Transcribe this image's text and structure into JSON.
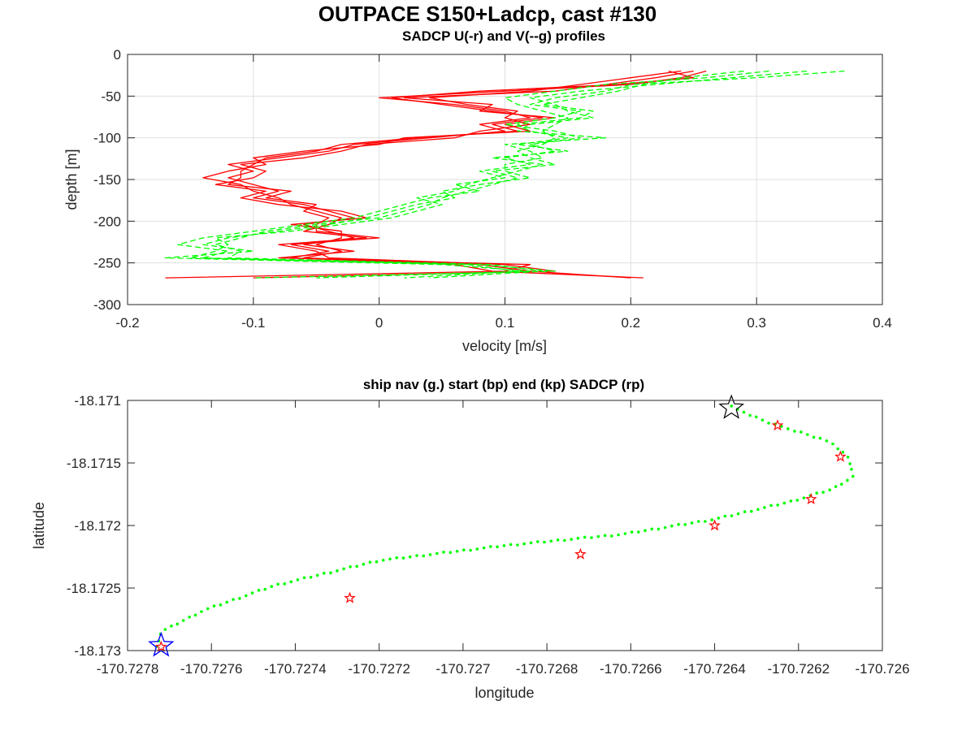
{
  "figure": {
    "suptitle": "OUTPACE S150+Ladcp, cast #130"
  },
  "chart_data": [
    {
      "type": "line",
      "title": "SADCP U(-r) and V(--g) profiles",
      "xlabel": "velocity [m/s]",
      "ylabel": "depth [m]",
      "xlim": [
        -0.2,
        0.4
      ],
      "ylim": [
        -300,
        0
      ],
      "xticks": [
        -0.2,
        -0.1,
        0,
        0.1,
        0.2,
        0.3,
        0.4
      ],
      "xtick_labels": [
        "-0.2",
        "-0.1",
        "0",
        "0.1",
        "0.2",
        "0.3",
        "0.4"
      ],
      "yticks": [
        -300,
        -250,
        -200,
        -150,
        -100,
        -50,
        0
      ],
      "ytick_labels": [
        "-300",
        "-250",
        "-200",
        "-150",
        "-100",
        "-50",
        "0"
      ],
      "grid": true,
      "depth": [
        -20,
        -28,
        -36,
        -44,
        -52,
        -60,
        -68,
        -76,
        -84,
        -92,
        -100,
        -108,
        -116,
        -124,
        -132,
        -140,
        -148,
        -156,
        -164,
        -172,
        -180,
        -188,
        -196,
        -204,
        -212,
        -220,
        -228,
        -236,
        -244,
        -252,
        -260,
        -268
      ],
      "series": [
        {
          "color": "#ff0000",
          "style": "solid",
          "profiles": [
            [
              0.26,
              0.24,
              0.2,
              0.1,
              0.0,
              0.06,
              0.1,
              0.12,
              0.08,
              0.1,
              0.04,
              -0.02,
              -0.04,
              -0.08,
              -0.12,
              -0.1,
              -0.12,
              -0.1,
              -0.08,
              -0.1,
              -0.06,
              -0.04,
              -0.02,
              -0.06,
              -0.04,
              -0.02,
              -0.06,
              -0.02,
              -0.08,
              0.12,
              0.1,
              -0.17
            ],
            [
              0.25,
              0.22,
              0.18,
              0.14,
              0.02,
              0.09,
              0.08,
              0.14,
              0.1,
              0.12,
              0.02,
              0.0,
              -0.06,
              -0.1,
              -0.09,
              -0.12,
              -0.14,
              -0.11,
              -0.1,
              -0.08,
              -0.07,
              -0.05,
              -0.03,
              -0.04,
              -0.06,
              -0.01,
              -0.08,
              -0.05,
              -0.04,
              0.1,
              0.14,
              -0.1
            ],
            [
              0.24,
              0.2,
              0.16,
              0.12,
              0.04,
              0.07,
              0.11,
              0.1,
              0.12,
              0.08,
              0.06,
              -0.01,
              -0.03,
              -0.06,
              -0.11,
              -0.09,
              -0.1,
              -0.13,
              -0.09,
              -0.11,
              -0.08,
              -0.03,
              -0.01,
              -0.07,
              -0.03,
              -0.03,
              -0.05,
              -0.03,
              -0.06,
              0.08,
              0.12,
              0.2
            ],
            [
              0.23,
              0.25,
              0.19,
              0.08,
              0.01,
              0.05,
              0.09,
              0.13,
              0.09,
              0.11,
              0.03,
              -0.03,
              -0.05,
              -0.09,
              -0.1,
              -0.11,
              -0.11,
              -0.12,
              -0.07,
              -0.09,
              -0.05,
              -0.06,
              -0.04,
              -0.05,
              -0.05,
              0.0,
              -0.07,
              -0.04,
              -0.07,
              0.06,
              0.09,
              0.21
            ]
          ]
        },
        {
          "color": "#00ff00",
          "style": "dashed",
          "profiles": [
            [
              0.37,
              0.3,
              0.2,
              0.18,
              0.14,
              0.12,
              0.16,
              0.14,
              0.1,
              0.14,
              0.16,
              0.12,
              0.14,
              0.1,
              0.12,
              0.08,
              0.1,
              0.06,
              0.08,
              0.04,
              0.02,
              0.0,
              -0.02,
              -0.06,
              -0.1,
              -0.14,
              -0.16,
              -0.12,
              -0.14,
              0.08,
              0.14,
              -0.1
            ],
            [
              0.34,
              0.28,
              0.22,
              0.16,
              0.12,
              0.14,
              0.15,
              0.17,
              0.12,
              0.11,
              0.18,
              0.1,
              0.12,
              0.13,
              0.1,
              0.1,
              0.12,
              0.08,
              0.05,
              0.06,
              0.03,
              0.01,
              -0.01,
              -0.04,
              -0.08,
              -0.12,
              -0.14,
              -0.1,
              -0.17,
              0.05,
              0.12,
              -0.05
            ],
            [
              0.31,
              0.26,
              0.18,
              0.14,
              0.1,
              0.11,
              0.13,
              0.15,
              0.14,
              0.13,
              0.14,
              0.13,
              0.11,
              0.12,
              0.14,
              0.09,
              0.11,
              0.09,
              0.07,
              0.05,
              0.04,
              0.02,
              0.0,
              -0.05,
              -0.09,
              -0.11,
              -0.13,
              -0.11,
              -0.12,
              0.09,
              0.13,
              0.04
            ],
            [
              0.29,
              0.24,
              0.21,
              0.19,
              0.16,
              0.13,
              0.17,
              0.16,
              0.11,
              0.12,
              0.15,
              0.11,
              0.15,
              0.09,
              0.13,
              0.11,
              0.09,
              0.07,
              0.06,
              0.03,
              0.05,
              0.03,
              0.01,
              -0.03,
              -0.07,
              -0.13,
              -0.12,
              -0.13,
              -0.15,
              0.07,
              0.11,
              0.02
            ]
          ]
        }
      ]
    },
    {
      "type": "scatter",
      "title": "ship nav (g.) start (bp) end (kp) SADCP (rp)",
      "xlabel": "longitude",
      "ylabel": "latitude",
      "xlim": [
        -170.7278,
        -170.726
      ],
      "ylim": [
        -18.173,
        -18.171
      ],
      "xticks": [
        -170.7278,
        -170.7276,
        -170.7274,
        -170.7272,
        -170.727,
        -170.7268,
        -170.7266,
        -170.7264,
        -170.7262,
        -170.726
      ],
      "xtick_labels": [
        "-170.7278",
        "-170.7276",
        "-170.7274",
        "-170.7272",
        "-170.727",
        "-170.7268",
        "-170.7266",
        "-170.7264",
        "-170.7262",
        "-170.726"
      ],
      "yticks": [
        -18.173,
        -18.1725,
        -18.172,
        -18.1715,
        -18.171
      ],
      "ytick_labels": [
        "-18.173",
        "-18.1725",
        "-18.172",
        "-18.1715",
        "-18.171"
      ],
      "grid": false,
      "nav_color": "#00ff00",
      "nav_path": [
        [
          -170.72636,
          -18.17105
        ],
        [
          -170.72627,
          -18.17118
        ],
        [
          -170.72619,
          -18.17126
        ],
        [
          -170.72612,
          -18.17134
        ],
        [
          -170.72608,
          -18.17146
        ],
        [
          -170.72607,
          -18.17161
        ],
        [
          -170.72612,
          -18.17171
        ],
        [
          -170.72622,
          -18.17181
        ],
        [
          -170.7264,
          -18.17195
        ],
        [
          -170.72662,
          -18.17207
        ],
        [
          -170.7269,
          -18.17216
        ],
        [
          -170.7272,
          -18.17228
        ],
        [
          -170.72745,
          -18.17248
        ],
        [
          -170.72762,
          -18.17268
        ],
        [
          -170.72772,
          -18.17285
        ],
        [
          -170.72773,
          -18.17297
        ]
      ],
      "start": {
        "lon": -170.72772,
        "lat": -18.17296,
        "color": "#0000ff"
      },
      "end": {
        "lon": -170.72636,
        "lat": -18.17106,
        "color": "#000000"
      },
      "sadcp_points": [
        [
          -170.72772,
          -18.17297
        ],
        [
          -170.72727,
          -18.17258
        ],
        [
          -170.72672,
          -18.17223
        ],
        [
          -170.7264,
          -18.172
        ],
        [
          -170.72617,
          -18.17179
        ],
        [
          -170.7261,
          -18.17145
        ],
        [
          -170.72625,
          -18.1712
        ]
      ],
      "sadcp_color": "#ff0000"
    }
  ]
}
